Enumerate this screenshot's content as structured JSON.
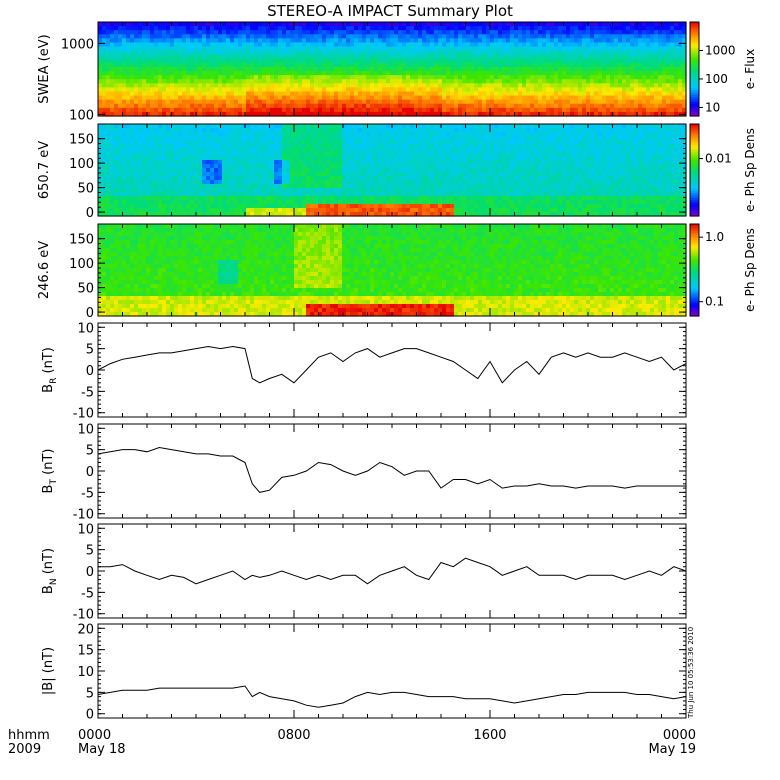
{
  "title": "STEREO-A IMPACT Summary Plot",
  "colors": {
    "axis": "#000000",
    "line": "#000000",
    "bg": "#ffffff"
  },
  "time_axis": {
    "unit_label": "hhmm",
    "year_label": "2009",
    "range_hours": [
      0,
      24
    ],
    "ticks": [
      {
        "hour": 0,
        "label": "0000",
        "sublabel": "May 18"
      },
      {
        "hour": 8,
        "label": "0800",
        "sublabel": ""
      },
      {
        "hour": 16,
        "label": "1600",
        "sublabel": ""
      },
      {
        "hour": 24,
        "label": "0000",
        "sublabel": "May 19"
      }
    ]
  },
  "timestamp": "Thu Jun 10 05:53:36 2010",
  "chart_data": [
    {
      "type": "heatmap",
      "ylabel": "SWEA (eV)",
      "yscale": "log",
      "ylim": [
        95,
        2000
      ],
      "yticks": [
        {
          "v": 100,
          "label": "100"
        },
        {
          "v": 1000,
          "label": "1000"
        }
      ],
      "colorbar": {
        "label": "e- Flux",
        "scale": "log",
        "range": [
          5,
          10000
        ],
        "ticks": [
          {
            "v": 10,
            "label": "10"
          },
          {
            "v": 100,
            "label": "100"
          },
          {
            "v": 1000,
            "label": "1000"
          }
        ]
      }
    },
    {
      "type": "heatmap",
      "ylabel": "650.7 eV",
      "ylim": [
        -8,
        180
      ],
      "yticks": [
        {
          "v": 0,
          "label": "0"
        },
        {
          "v": 50,
          "label": "50"
        },
        {
          "v": 100,
          "label": "100"
        },
        {
          "v": 150,
          "label": "150"
        }
      ],
      "colorbar": {
        "label": "e- Ph Sp Dens",
        "scale": "log",
        "range": [
          0.001,
          0.04
        ],
        "ticks": [
          {
            "v": 0.01,
            "label": "0.01"
          }
        ]
      }
    },
    {
      "type": "heatmap",
      "ylabel": "246.6 eV",
      "ylim": [
        -8,
        180
      ],
      "yticks": [
        {
          "v": 0,
          "label": "0"
        },
        {
          "v": 50,
          "label": "50"
        },
        {
          "v": 100,
          "label": "100"
        },
        {
          "v": 150,
          "label": "150"
        }
      ],
      "colorbar": {
        "label": "e- Ph Sp Dens",
        "scale": "log",
        "range": [
          0.06,
          1.6
        ],
        "ticks": [
          {
            "v": 0.1,
            "label": "0.1"
          },
          {
            "v": 1.0,
            "label": "1.0"
          }
        ]
      }
    },
    {
      "type": "line",
      "ylabel_main": "B",
      "ylabel_sub": "R",
      "ylabel_unit": "(nT)",
      "ylim": [
        -11,
        11
      ],
      "yticks": [
        {
          "v": -10,
          "label": "-10"
        },
        {
          "v": -5,
          "label": "-5"
        },
        {
          "v": 0,
          "label": "0"
        },
        {
          "v": 5,
          "label": "5"
        },
        {
          "v": 10,
          "label": "10"
        }
      ],
      "x": [
        0,
        0.5,
        1,
        1.5,
        2,
        2.5,
        3,
        3.5,
        4,
        4.5,
        5,
        5.5,
        6,
        6.3,
        6.6,
        7,
        7.5,
        8,
        8.5,
        9,
        9.5,
        10,
        10.5,
        11,
        11.5,
        12,
        12.5,
        13,
        13.5,
        14,
        14.5,
        15,
        15.5,
        16,
        16.5,
        17,
        17.5,
        18,
        18.5,
        19,
        19.5,
        20,
        20.5,
        21,
        21.5,
        22,
        22.5,
        23,
        23.5,
        24
      ],
      "y": [
        0,
        1.5,
        2.5,
        3,
        3.5,
        4,
        4,
        4.5,
        5,
        5.5,
        5,
        5.5,
        5,
        -2,
        -3,
        -2,
        -1,
        -3,
        0,
        3,
        4,
        2,
        4,
        5,
        3,
        4,
        5,
        5,
        4,
        3,
        2,
        0,
        -2,
        2,
        -3,
        0,
        2,
        -1,
        3,
        4,
        3,
        4,
        3,
        3,
        4,
        3,
        2,
        3,
        0,
        1.5
      ]
    },
    {
      "type": "line",
      "ylabel_main": "B",
      "ylabel_sub": "T",
      "ylabel_unit": "(nT)",
      "ylim": [
        -11,
        11
      ],
      "yticks": [
        {
          "v": -10,
          "label": "-10"
        },
        {
          "v": -5,
          "label": "-5"
        },
        {
          "v": 0,
          "label": "0"
        },
        {
          "v": 5,
          "label": "5"
        },
        {
          "v": 10,
          "label": "10"
        }
      ],
      "x": [
        0,
        0.5,
        1,
        1.5,
        2,
        2.5,
        3,
        3.5,
        4,
        4.5,
        5,
        5.5,
        6,
        6.3,
        6.6,
        7,
        7.5,
        8,
        8.5,
        9,
        9.5,
        10,
        10.5,
        11,
        11.5,
        12,
        12.5,
        13,
        13.5,
        14,
        14.5,
        15,
        15.5,
        16,
        16.5,
        17,
        17.5,
        18,
        18.5,
        19,
        19.5,
        20,
        20.5,
        21,
        21.5,
        22,
        22.5,
        23,
        23.5,
        24
      ],
      "y": [
        4,
        4.5,
        5,
        5,
        4.5,
        5.5,
        5,
        4.5,
        4,
        4,
        3.5,
        3.5,
        2,
        -3,
        -5,
        -4.5,
        -1.5,
        -1,
        0,
        2,
        1.5,
        0,
        -1,
        0,
        2,
        1,
        -1,
        0,
        0,
        -4,
        -2,
        -2,
        -3,
        -2,
        -4,
        -3.5,
        -3.5,
        -3,
        -3.5,
        -3.5,
        -4,
        -3.5,
        -3.5,
        -3.5,
        -4,
        -3.5,
        -3.5,
        -3.5,
        -3.5,
        -3.5
      ]
    },
    {
      "type": "line",
      "ylabel_main": "B",
      "ylabel_sub": "N",
      "ylabel_unit": "(nT)",
      "ylim": [
        -11,
        11
      ],
      "yticks": [
        {
          "v": -10,
          "label": "-10"
        },
        {
          "v": -5,
          "label": "-5"
        },
        {
          "v": 0,
          "label": "0"
        },
        {
          "v": 5,
          "label": "5"
        },
        {
          "v": 10,
          "label": "10"
        }
      ],
      "x": [
        0,
        0.5,
        1,
        1.5,
        2,
        2.5,
        3,
        3.5,
        4,
        4.5,
        5,
        5.5,
        6,
        6.3,
        6.6,
        7,
        7.5,
        8,
        8.5,
        9,
        9.5,
        10,
        10.5,
        11,
        11.5,
        12,
        12.5,
        13,
        13.5,
        14,
        14.5,
        15,
        15.5,
        16,
        16.5,
        17,
        17.5,
        18,
        18.5,
        19,
        19.5,
        20,
        20.5,
        21,
        21.5,
        22,
        22.5,
        23,
        23.5,
        24
      ],
      "y": [
        1,
        1,
        1.5,
        0,
        -1,
        -2,
        -1,
        -1.5,
        -3,
        -2,
        -1,
        0,
        -2,
        -1,
        -1.5,
        -1,
        0,
        -1,
        -2,
        -1,
        -2,
        -1,
        -1,
        -3,
        -1,
        0,
        1,
        -1,
        -2,
        2,
        1,
        3,
        2,
        1,
        -1,
        0,
        1,
        -1,
        -1,
        -1,
        -2,
        -1,
        -1,
        -1,
        -2,
        -1,
        0,
        -1,
        1,
        0
      ]
    },
    {
      "type": "line",
      "ylabel_main": "|B|",
      "ylabel_sub": "",
      "ylabel_unit": "(nT)",
      "ylim": [
        -1,
        21
      ],
      "yticks": [
        {
          "v": 0,
          "label": "0"
        },
        {
          "v": 5,
          "label": "5"
        },
        {
          "v": 10,
          "label": "10"
        },
        {
          "v": 15,
          "label": "15"
        },
        {
          "v": 20,
          "label": "20"
        }
      ],
      "x": [
        0,
        0.5,
        1,
        1.5,
        2,
        2.5,
        3,
        3.5,
        4,
        4.5,
        5,
        5.5,
        6,
        6.3,
        6.6,
        7,
        7.5,
        8,
        8.5,
        9,
        9.5,
        10,
        10.5,
        11,
        11.5,
        12,
        12.5,
        13,
        13.5,
        14,
        14.5,
        15,
        15.5,
        16,
        16.5,
        17,
        17.5,
        18,
        18.5,
        19,
        19.5,
        20,
        20.5,
        21,
        21.5,
        22,
        22.5,
        23,
        23.5,
        24
      ],
      "y": [
        4.5,
        5,
        5.5,
        5.5,
        5.5,
        6,
        6,
        6,
        6,
        6,
        6,
        6,
        6.5,
        4,
        5,
        4,
        3.5,
        3,
        2,
        1.5,
        2,
        2.5,
        4,
        5,
        4.5,
        5,
        5,
        4.5,
        4,
        4,
        4,
        3.5,
        3.5,
        3.5,
        3,
        2.5,
        3,
        3.5,
        4,
        4.5,
        4.5,
        5,
        5,
        5,
        5,
        4.5,
        4.5,
        4,
        3.5,
        4
      ]
    }
  ]
}
